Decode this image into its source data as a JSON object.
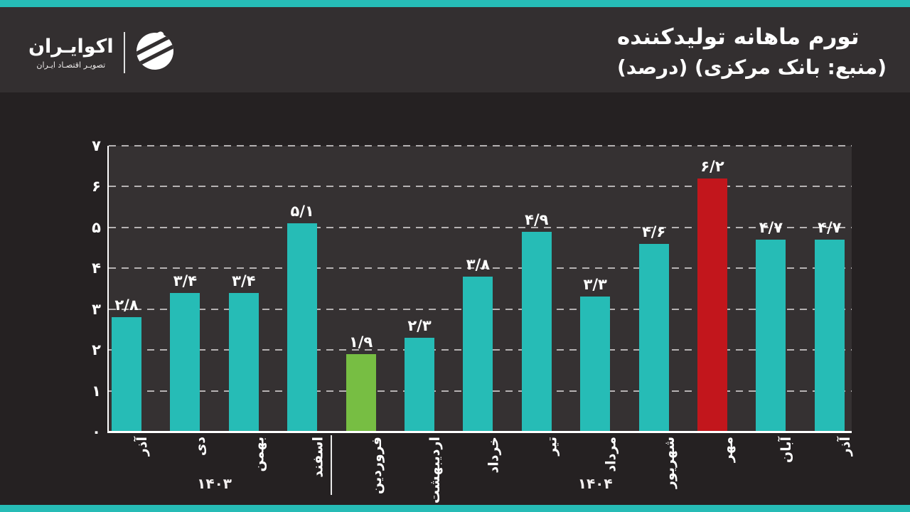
{
  "colors": {
    "accent_teal": "#26BCB6",
    "highlight_green": "#77BE43",
    "highlight_red": "#C2161C",
    "header_bg": "#332F30",
    "page_bg": "#252122",
    "plot_bg": "#353132"
  },
  "header": {
    "title": "تورم ماهانه تولیدکننده",
    "subtitle": "(منبع: بانک مرکزی) (درصد)",
    "brand": {
      "wordmark": "اکوایـران",
      "tagline": "تصویـر اقتصـاد ایـران",
      "logo_icon": "ecoiran-striped-circle-icon"
    }
  },
  "chart_data": {
    "type": "bar",
    "title": "تورم ماهانه تولیدکننده",
    "source_note": "(منبع: بانک مرکزی)",
    "unit_label": "(درصد)",
    "categories": [
      "آذر",
      "دی",
      "بهمن",
      "اسفند",
      "فروردین",
      "اردیبهشت",
      "خرداد",
      "تیر",
      "مرداد",
      "شهریور",
      "مهر",
      "آبان",
      "آذر"
    ],
    "values": [
      2.8,
      3.4,
      3.4,
      5.1,
      1.9,
      2.3,
      3.8,
      4.9,
      3.3,
      4.6,
      6.2,
      4.7,
      4.7
    ],
    "value_labels": [
      "۲/۸",
      "۳/۴",
      "۳/۴",
      "۵/۱",
      "۱/۹",
      "۲/۳",
      "۳/۸",
      "۴/۹",
      "۳/۳",
      "۴/۶",
      "۶/۲",
      "۴/۷",
      "۴/۷"
    ],
    "bar_colors": [
      "#26BCB6",
      "#26BCB6",
      "#26BCB6",
      "#26BCB6",
      "#77BE43",
      "#26BCB6",
      "#26BCB6",
      "#26BCB6",
      "#26BCB6",
      "#26BCB6",
      "#C2161C",
      "#26BCB6",
      "#26BCB6"
    ],
    "ylim": [
      0,
      7
    ],
    "y_tick_values": [
      0,
      1,
      2,
      3,
      4,
      5,
      6,
      7
    ],
    "y_tick_labels": [
      "۰",
      "۱",
      "۲",
      "۳",
      "۴",
      "۵",
      "۶",
      "۷"
    ],
    "grid": "horizontal-dashed",
    "legend": "none",
    "year_groups": [
      {
        "label": "۱۴۰۳",
        "from_index": 0,
        "to_index": 3
      },
      {
        "label": "۱۴۰۴",
        "from_index": 4,
        "to_index": 12
      }
    ]
  }
}
